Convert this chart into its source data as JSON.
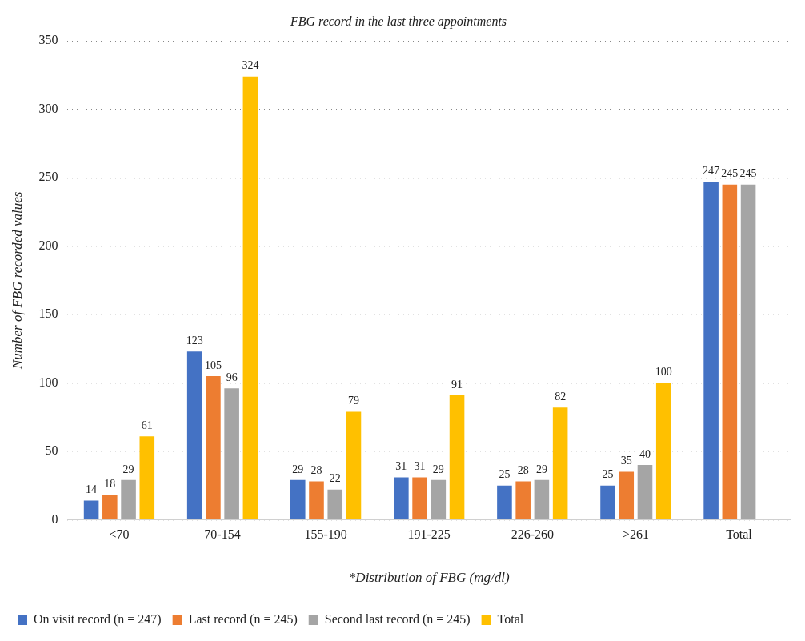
{
  "chart_data": {
    "type": "bar",
    "title": "FBG record in the last three appointments",
    "xlabel": "*Distribution of FBG (mg/dl)",
    "ylabel": "Number of FBG recorded values",
    "categories": [
      "<70",
      "70-154",
      "155-190",
      "191-225",
      "226-260",
      ">261",
      "Total"
    ],
    "series": [
      {
        "name": "On visit record (n = 247)",
        "color": "#4472c4",
        "values": [
          14,
          123,
          29,
          31,
          25,
          25,
          247
        ]
      },
      {
        "name": "Last record (n = 245)",
        "color": "#ed7d31",
        "values": [
          18,
          105,
          28,
          31,
          28,
          35,
          245
        ]
      },
      {
        "name": "Second last record (n = 245)",
        "color": "#a5a5a5",
        "values": [
          29,
          96,
          22,
          29,
          29,
          40,
          245
        ]
      },
      {
        "name": "Total",
        "color": "#ffc000",
        "values": [
          61,
          324,
          79,
          91,
          82,
          100,
          null
        ]
      }
    ],
    "ylim": [
      0,
      350
    ],
    "yticks": [
      0,
      50,
      100,
      150,
      200,
      250,
      300,
      350
    ],
    "grid": "y",
    "legend": "bottom left",
    "data_labels": true
  }
}
